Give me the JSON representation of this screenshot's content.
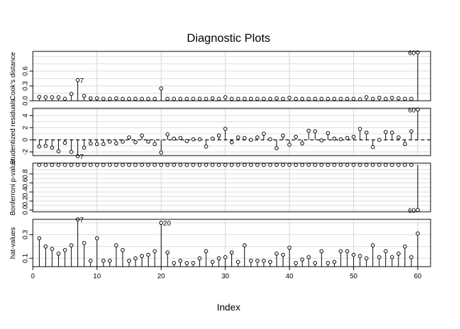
{
  "chart_data": {
    "type": "scatter",
    "title": "Diagnostic Plots",
    "xlabel": "Index",
    "xlim": [
      0,
      62
    ],
    "x_ticks": [
      0,
      10,
      20,
      30,
      40,
      50,
      60
    ],
    "x_tick_labels": [
      "0",
      "10",
      "20",
      "30",
      "40",
      "50",
      "60"
    ],
    "panels": [
      {
        "name": "Cook's distance",
        "ylabel": "Cook's distance",
        "ylim": [
          0,
          1.0
        ],
        "y_ticks": [
          0.0,
          0.3,
          0.6
        ],
        "y_tick_labels": [
          "0.0",
          "0.3",
          "0.6"
        ],
        "baseline": 0,
        "values": [
          0.08,
          0.07,
          0.07,
          0.07,
          0.04,
          0.14,
          0.42,
          0.1,
          0.05,
          0.05,
          0.04,
          0.04,
          0.05,
          0.04,
          0.04,
          0.04,
          0.04,
          0.04,
          0.04,
          0.25,
          0.04,
          0.04,
          0.04,
          0.04,
          0.04,
          0.04,
          0.04,
          0.05,
          0.04,
          0.07,
          0.04,
          0.04,
          0.04,
          0.04,
          0.04,
          0.04,
          0.04,
          0.05,
          0.04,
          0.06,
          0.04,
          0.04,
          0.04,
          0.04,
          0.04,
          0.04,
          0.04,
          0.04,
          0.04,
          0.04,
          0.03,
          0.07,
          0.04,
          0.06,
          0.04,
          0.06,
          0.05,
          0.04,
          0.04,
          0.98
        ],
        "annotations": [
          {
            "index": 7,
            "label": "7",
            "side": "right"
          },
          {
            "index": 60,
            "label": "60",
            "side": "left"
          }
        ]
      },
      {
        "name": "Studentized residuals",
        "ylabel": "Studentized residuals",
        "ylim": [
          -2.6,
          5.2
        ],
        "y_ticks": [
          -2,
          0,
          2,
          4
        ],
        "y_tick_labels": [
          "-2",
          "0",
          "2",
          "4"
        ],
        "baseline": 0,
        "reference_line": 0,
        "values": [
          -1.1,
          -1.0,
          -1.3,
          -1.9,
          -0.5,
          -2.0,
          -2.7,
          -1.3,
          -0.6,
          -0.7,
          -0.7,
          -0.3,
          -0.6,
          -0.3,
          0.4,
          -0.4,
          0.7,
          -0.3,
          -0.7,
          -2.1,
          0.9,
          0.2,
          0.3,
          -0.2,
          0.1,
          0.1,
          -1.1,
          0.2,
          0.7,
          1.8,
          -0.4,
          0.4,
          0.3,
          0.0,
          0.4,
          1.0,
          0.1,
          -1.4,
          0.7,
          -0.8,
          0.5,
          -0.6,
          1.5,
          1.4,
          -0.1,
          1.1,
          0.2,
          0.1,
          0.3,
          0.5,
          1.8,
          1.2,
          -1.2,
          0.0,
          1.3,
          1.2,
          0.4,
          -0.7,
          1.4,
          5.0
        ],
        "annotations": [
          {
            "index": 7,
            "label": "7",
            "side": "right"
          },
          {
            "index": 60,
            "label": "60",
            "side": "left"
          }
        ]
      },
      {
        "name": "Bonferroni p-value",
        "ylabel": "Bonferroni p-value",
        "ylim": [
          -0.04,
          1.04
        ],
        "y_ticks": [
          0.0,
          0.2,
          0.4,
          0.6,
          0.8
        ],
        "y_tick_labels": [
          "0.0",
          "0.2",
          "0.4",
          "0.6",
          "0.8"
        ],
        "baseline": 1,
        "values": [
          1,
          1,
          1,
          1,
          1,
          1,
          1,
          1,
          1,
          1,
          1,
          1,
          1,
          1,
          1,
          1,
          1,
          1,
          1,
          1,
          1,
          1,
          1,
          1,
          1,
          1,
          1,
          1,
          1,
          1,
          1,
          1,
          1,
          1,
          1,
          1,
          1,
          1,
          1,
          1,
          1,
          1,
          1,
          1,
          1,
          1,
          1,
          1,
          1,
          1,
          1,
          1,
          1,
          1,
          1,
          1,
          1,
          1,
          1,
          0.0
        ],
        "annotations": [
          {
            "index": 60,
            "label": "60",
            "side": "left"
          }
        ]
      },
      {
        "name": "hat-values",
        "ylabel": "hat-values",
        "ylim": [
          0.03,
          0.43
        ],
        "y_ticks": [
          0.1,
          0.3
        ],
        "y_tick_labels": [
          "0.1",
          "0.3"
        ],
        "baseline": 0.03,
        "values": [
          0.27,
          0.2,
          0.18,
          0.14,
          0.17,
          0.21,
          0.43,
          0.23,
          0.08,
          0.27,
          0.08,
          0.08,
          0.21,
          0.17,
          0.08,
          0.1,
          0.12,
          0.13,
          0.16,
          0.4,
          0.15,
          0.06,
          0.08,
          0.06,
          0.06,
          0.1,
          0.16,
          0.07,
          0.1,
          0.11,
          0.15,
          0.07,
          0.21,
          0.08,
          0.08,
          0.08,
          0.07,
          0.14,
          0.13,
          0.19,
          0.06,
          0.09,
          0.11,
          0.06,
          0.16,
          0.06,
          0.07,
          0.16,
          0.16,
          0.13,
          0.12,
          0.1,
          0.21,
          0.11,
          0.16,
          0.11,
          0.14,
          0.2,
          0.11,
          0.31
        ],
        "annotations": [
          {
            "index": 7,
            "label": "7",
            "side": "right"
          },
          {
            "index": 20,
            "label": "20",
            "side": "right"
          }
        ]
      }
    ],
    "visible_ylabels": [
      "Cook's distance",
      "Studentized residu",
      "Bonferroni p-value",
      "hat-values"
    ],
    "grid": true,
    "legend": "none"
  }
}
